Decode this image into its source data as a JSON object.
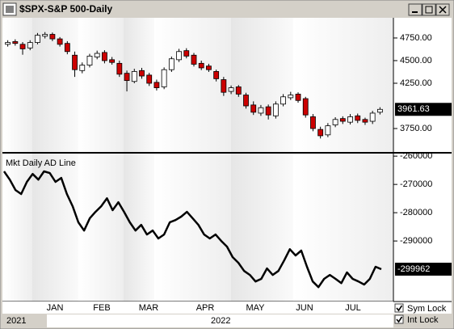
{
  "window_title": "$SPX-S&P 500-Daily",
  "chart_data": [
    {
      "type": "candlestick",
      "open": [
        4680,
        4710,
        4680,
        4640,
        4700,
        4770,
        4790,
        4740,
        4690,
        4560,
        4390,
        4450,
        4540,
        4590,
        4510,
        4470,
        4360,
        4270,
        4390,
        4340,
        4260,
        4210,
        4400,
        4510,
        4610,
        4560,
        4470,
        4440,
        4380,
        4290,
        4160,
        4210,
        4120,
        4010,
        3920,
        3990,
        3890,
        4020,
        4090,
        4130,
        4080,
        3880,
        3740,
        3680,
        3790,
        3860,
        3820,
        3890,
        3850,
        3830,
        3930
      ],
      "high": [
        4725,
        4735,
        4705,
        4725,
        4805,
        4815,
        4810,
        4760,
        4715,
        4600,
        4480,
        4575,
        4610,
        4615,
        4540,
        4500,
        4390,
        4410,
        4420,
        4365,
        4290,
        4425,
        4545,
        4630,
        4637,
        4585,
        4500,
        4465,
        4400,
        4320,
        4225,
        4230,
        4145,
        4050,
        4010,
        4015,
        4050,
        4130,
        4155,
        4150,
        4100,
        3910,
        3770,
        3810,
        3875,
        3885,
        3910,
        3915,
        3870,
        3945,
        3985
      ],
      "low": [
        4655,
        4665,
        4565,
        4615,
        4680,
        4745,
        4715,
        4655,
        4570,
        4320,
        4360,
        4425,
        4515,
        4470,
        4455,
        4320,
        4160,
        4250,
        4300,
        4220,
        4170,
        4185,
        4375,
        4485,
        4525,
        4435,
        4395,
        4375,
        4270,
        4110,
        4130,
        4100,
        3970,
        3900,
        3890,
        3850,
        3860,
        3995,
        4065,
        4035,
        3870,
        3720,
        3640,
        3655,
        3765,
        3800,
        3795,
        3810,
        3790,
        3800,
        3905
      ],
      "close": [
        4700,
        4690,
        4630,
        4700,
        4780,
        4790,
        4740,
        4680,
        4600,
        4400,
        4450,
        4550,
        4580,
        4500,
        4480,
        4350,
        4280,
        4380,
        4330,
        4250,
        4200,
        4400,
        4520,
        4600,
        4550,
        4460,
        4420,
        4400,
        4300,
        4150,
        4200,
        4130,
        4000,
        3930,
        3980,
        3900,
        4020,
        4100,
        4120,
        4060,
        3900,
        3750,
        3670,
        3780,
        3850,
        3830,
        3880,
        3840,
        3820,
        3920,
        3961.63
      ],
      "up_color": "#ffffff",
      "down_color": "#cc0000",
      "ylim": [
        3491,
        4973
      ],
      "yticks": [
        {
          "value": 4750,
          "label": "4750.00"
        },
        {
          "value": 4500,
          "label": "4500.00"
        },
        {
          "value": 4250,
          "label": "4250.00"
        },
        {
          "value": 3750,
          "label": "3750.00"
        }
      ]
    },
    {
      "type": "line",
      "title": "Mkt Daily AD Line",
      "color": "#000000",
      "values": [
        -265400,
        -268300,
        -272000,
        -273400,
        -269100,
        -266300,
        -268300,
        -265400,
        -266000,
        -269100,
        -267700,
        -273400,
        -277700,
        -283400,
        -286300,
        -282000,
        -279700,
        -277700,
        -274900,
        -279100,
        -276300,
        -279700,
        -283400,
        -286300,
        -284300,
        -287700,
        -286300,
        -289100,
        -287700,
        -283400,
        -282600,
        -281400,
        -279700,
        -282000,
        -284300,
        -287700,
        -289100,
        -287700,
        -290000,
        -292000,
        -295700,
        -297700,
        -300600,
        -302000,
        -304300,
        -303400,
        -299700,
        -302000,
        -300600,
        -296900,
        -292900,
        -295100,
        -293400,
        -299100,
        -304300,
        -306300,
        -303400,
        -302000,
        -303400,
        -304900,
        -301100,
        -303400,
        -304300,
        -305400,
        -303400,
        -299100,
        -299962
      ],
      "ylim": [
        -311400,
        -259100
      ],
      "yticks": [
        -260000,
        -270000,
        -280000,
        -290000
      ]
    }
  ],
  "month_labels": [
    "JAN",
    "FEB",
    "MAR",
    "APR",
    "MAY",
    "JUN",
    "JUL"
  ],
  "year_labels": [
    "2021",
    "2022"
  ],
  "controls": [
    {
      "label": "Sym Lock",
      "checked": true
    },
    {
      "label": "Int Lock",
      "checked": true
    }
  ]
}
